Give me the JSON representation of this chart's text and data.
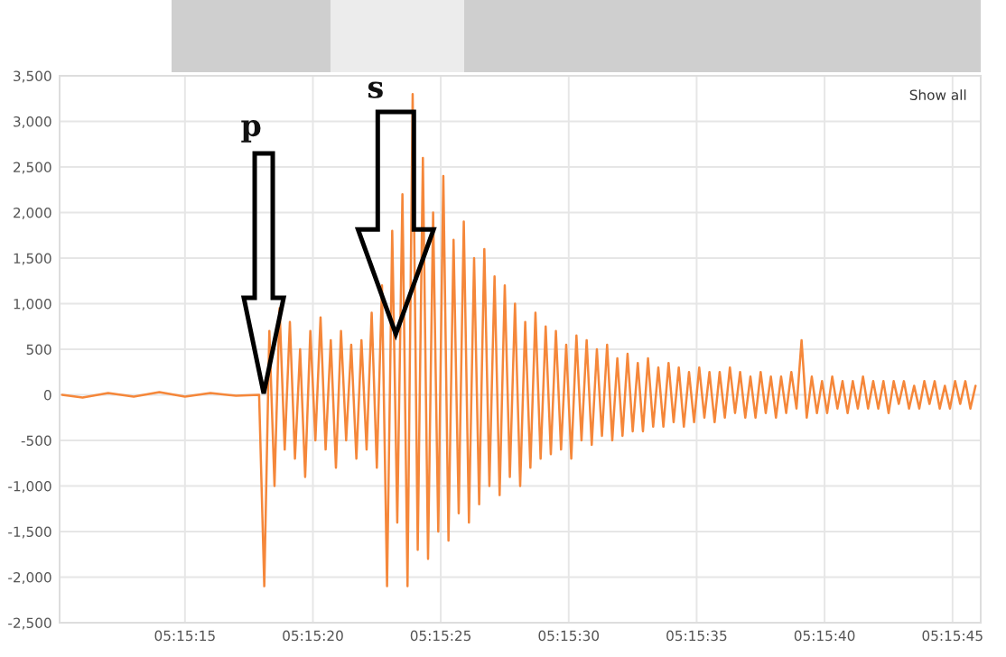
{
  "chart_data": {
    "type": "line",
    "x": [
      5.252833,
      5.253056,
      5.253333,
      5.253611,
      5.253889,
      5.254167,
      5.254444,
      5.254722,
      5.254972,
      5.255028,
      5.255083,
      5.255139,
      5.255194,
      5.25525,
      5.255306,
      5.255361,
      5.255417,
      5.255472,
      5.255528,
      5.255583,
      5.255639,
      5.255694,
      5.25575,
      5.255806,
      5.255861,
      5.255917,
      5.255972,
      5.256028,
      5.256083,
      5.256139,
      5.256194,
      5.25625,
      5.256306,
      5.256361,
      5.256417,
      5.256472,
      5.256528,
      5.256583,
      5.256639,
      5.256694,
      5.25675,
      5.256806,
      5.256861,
      5.256917,
      5.256972,
      5.257028,
      5.257083,
      5.257139,
      5.257194,
      5.25725,
      5.257306,
      5.257361,
      5.257417,
      5.257472,
      5.257528,
      5.257583,
      5.257639,
      5.257694,
      5.25775,
      5.257806,
      5.257861,
      5.257917,
      5.257972,
      5.258028,
      5.258083,
      5.258139,
      5.258194,
      5.25825,
      5.258306,
      5.258361,
      5.258417,
      5.258472,
      5.258528,
      5.258583,
      5.258639,
      5.258694,
      5.25875,
      5.258806,
      5.258861,
      5.258917,
      5.258972,
      5.259028,
      5.259083,
      5.259139,
      5.259194,
      5.25925,
      5.259306,
      5.259361,
      5.259417,
      5.259472,
      5.259528,
      5.259583,
      5.259639,
      5.259694,
      5.25975,
      5.259806,
      5.259861,
      5.259917,
      5.259972,
      5.260028,
      5.260083,
      5.260139,
      5.260194,
      5.26025,
      5.260306,
      5.260361,
      5.260417,
      5.260472,
      5.260528,
      5.260583,
      5.260639,
      5.260694,
      5.26075,
      5.260806,
      5.260861,
      5.260917,
      5.260972,
      5.261028,
      5.261083,
      5.261139,
      5.261194,
      5.26125,
      5.261306,
      5.261361,
      5.261417,
      5.261472,
      5.261528,
      5.261583,
      5.261639,
      5.261694,
      5.26175,
      5.261806,
      5.261861,
      5.261917,
      5.261972,
      5.262028,
      5.262083,
      5.262139,
      5.262194,
      5.26225,
      5.262306,
      5.262361,
      5.262417,
      5.262472,
      5.262528,
      5.262583,
      5.262639,
      5.262694,
      5.26275
    ],
    "series": [
      {
        "color": "#f5873a",
        "values": [
          0,
          -30,
          20,
          -20,
          30,
          -20,
          20,
          -10,
          0,
          -2100,
          700,
          -1000,
          950,
          -600,
          800,
          -700,
          500,
          -900,
          700,
          -500,
          850,
          -600,
          600,
          -800,
          700,
          -500,
          550,
          -700,
          600,
          -600,
          900,
          -800,
          1200,
          -2100,
          1800,
          -1400,
          2200,
          -2100,
          3300,
          -1700,
          2600,
          -1800,
          2000,
          -1500,
          2400,
          -1600,
          1700,
          -1300,
          1900,
          -1400,
          1500,
          -1200,
          1600,
          -1000,
          1300,
          -1100,
          1200,
          -900,
          1000,
          -1000,
          800,
          -800,
          900,
          -700,
          750,
          -650,
          700,
          -600,
          550,
          -700,
          650,
          -500,
          600,
          -550,
          500,
          -450,
          550,
          -500,
          400,
          -450,
          450,
          -400,
          350,
          -400,
          400,
          -350,
          300,
          -350,
          350,
          -300,
          300,
          -350,
          250,
          -300,
          300,
          -250,
          250,
          -300,
          250,
          -250,
          300,
          -200,
          250,
          -250,
          200,
          -250,
          250,
          -200,
          200,
          -250,
          200,
          -200,
          250,
          -150,
          600,
          -250,
          200,
          -200,
          150,
          -200,
          200,
          -150,
          150,
          -200,
          150,
          -150,
          200,
          -150,
          150,
          -150,
          150,
          -200,
          150,
          -100,
          150,
          -150,
          100,
          -150,
          150,
          -100,
          150,
          -150,
          100,
          -150,
          150,
          -100,
          150,
          -150,
          100
        ]
      }
    ],
    "xlim": [
      5.252806,
      5.262806
    ],
    "xticks": [
      {
        "value": 5.254167,
        "label": "05:15:15"
      },
      {
        "value": 5.255556,
        "label": "05:15:20"
      },
      {
        "value": 5.256944,
        "label": "05:15:25"
      },
      {
        "value": 5.258333,
        "label": "05:15:30"
      },
      {
        "value": 5.259722,
        "label": "05:15:35"
      },
      {
        "value": 5.261111,
        "label": "05:15:40"
      },
      {
        "value": 5.2625,
        "label": "05:15:45"
      }
    ],
    "ylim": [
      -2500,
      3500
    ],
    "yticks": [
      {
        "value": -2500,
        "label": "-2,500"
      },
      {
        "value": -2000,
        "label": "-2,000"
      },
      {
        "value": -1500,
        "label": "-1,500"
      },
      {
        "value": -1000,
        "label": "-1,000"
      },
      {
        "value": -500,
        "label": "-500"
      },
      {
        "value": 0,
        "label": "0"
      },
      {
        "value": 500,
        "label": "500"
      },
      {
        "value": 1000,
        "label": "1,000"
      },
      {
        "value": 1500,
        "label": "1,500"
      },
      {
        "value": 2000,
        "label": "2,000"
      },
      {
        "value": 2500,
        "label": "2,500"
      },
      {
        "value": 3000,
        "label": "3,000"
      },
      {
        "value": 3500,
        "label": "3,500"
      }
    ],
    "grid": true,
    "marker": "none",
    "line_style": "solid",
    "annotations": [
      "p",
      "s",
      "Show all"
    ]
  }
}
